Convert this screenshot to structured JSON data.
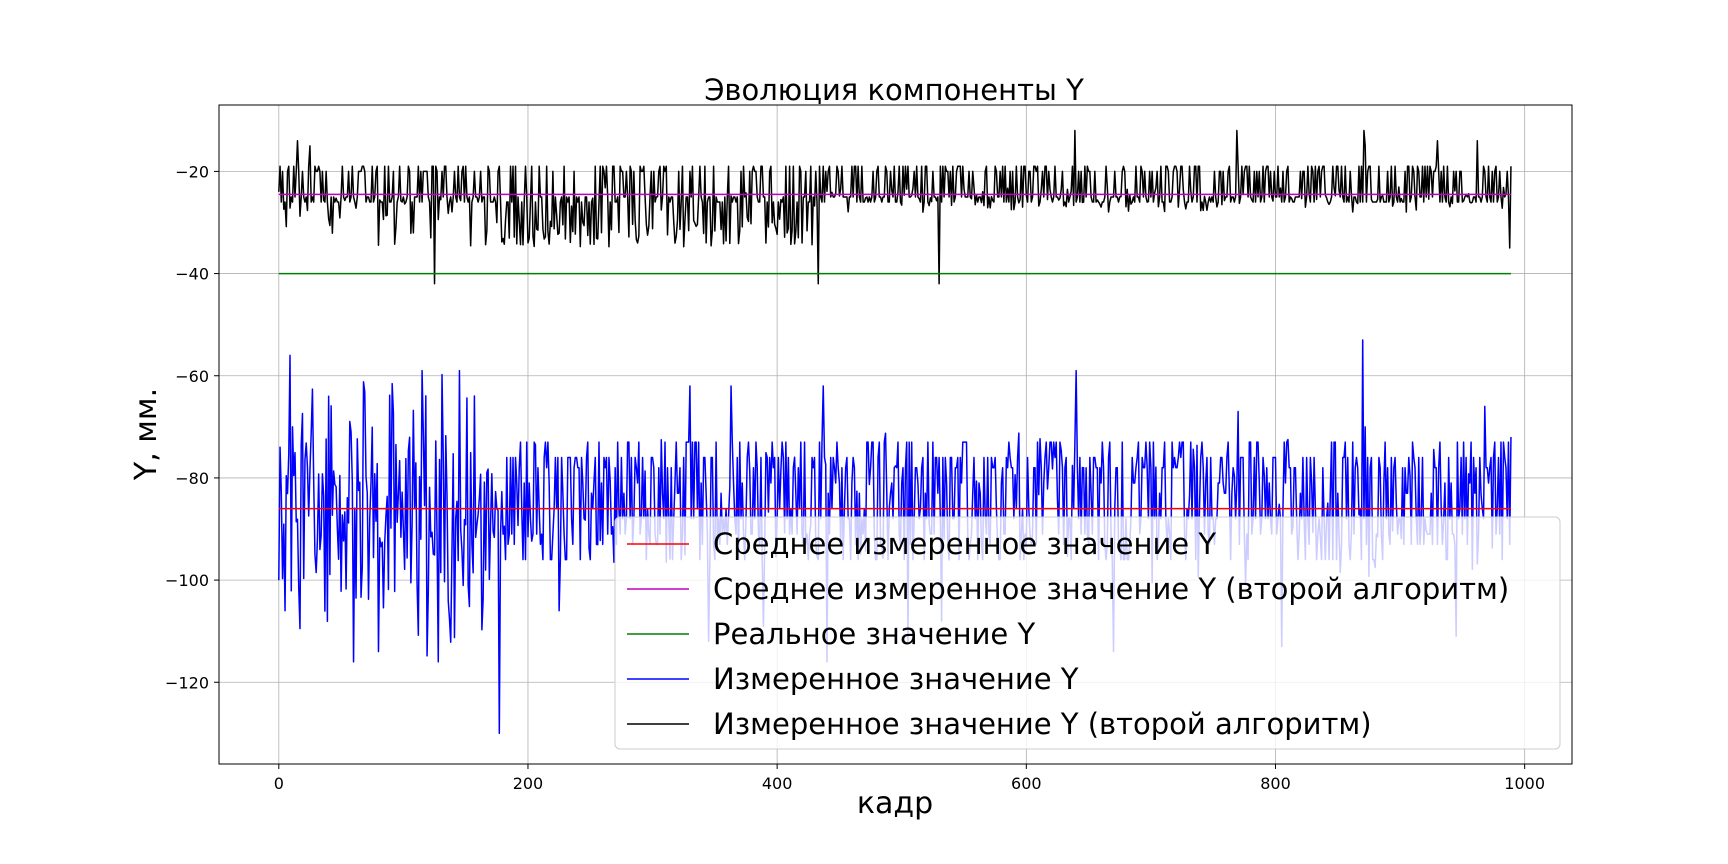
{
  "chart_data": {
    "type": "line",
    "title": "Эволюция компоненты Y",
    "xlabel": "кадр",
    "ylabel": "Y, мм.",
    "xlim": [
      -48,
      1038
    ],
    "ylim": [
      -136,
      -7
    ],
    "xticks": [
      0,
      200,
      400,
      600,
      800,
      1000
    ],
    "yticks": [
      -20,
      -40,
      -60,
      -80,
      -100,
      -120
    ],
    "xtick_labels": [
      "0",
      "200",
      "400",
      "600",
      "800",
      "1000"
    ],
    "ytick_labels": [
      "−20",
      "−40",
      "−60",
      "−80",
      "−100",
      "−120"
    ],
    "grid": true,
    "legend_position": "lower-right",
    "n_frames": 990,
    "series": [
      {
        "name": "Среднее измеренное значение Y",
        "kind": "constant",
        "value": -86,
        "color": "#ff0000"
      },
      {
        "name": "Среднее измеренное значение Y (второй алгоритм)",
        "kind": "constant",
        "value": -24.5,
        "color": "#bf00bf"
      },
      {
        "name": "Реальное значение Y",
        "kind": "constant",
        "value": -40,
        "color": "#008000"
      },
      {
        "name": "Измеренное значение Y",
        "kind": "noisy",
        "mean": -86,
        "levels": [
          -73,
          -76,
          -78,
          -81,
          -83,
          -86,
          -88,
          -91,
          -93,
          -96
        ],
        "early_range": [
          -118,
          -56
        ],
        "spikes": [
          [
            0,
            -100
          ],
          [
            1,
            -74
          ],
          [
            5,
            -106
          ],
          [
            9,
            -56
          ],
          [
            11,
            -70
          ],
          [
            40,
            -64
          ],
          [
            60,
            -116
          ],
          [
            80,
            -114
          ],
          [
            115,
            -59
          ],
          [
            128,
            -116
          ],
          [
            145,
            -59
          ],
          [
            155,
            -93
          ],
          [
            177,
            -130
          ],
          [
            205,
            -73
          ],
          [
            225,
            -106
          ],
          [
            330,
            -62
          ],
          [
            345,
            -112
          ],
          [
            363,
            -62
          ],
          [
            389,
            -109
          ],
          [
            437,
            -62
          ],
          [
            440,
            -116
          ],
          [
            505,
            -112
          ],
          [
            532,
            -108
          ],
          [
            640,
            -59
          ],
          [
            670,
            -114
          ],
          [
            770,
            -67
          ],
          [
            805,
            -113
          ],
          [
            870,
            -53
          ],
          [
            872,
            -70
          ],
          [
            945,
            -111
          ],
          [
            968,
            -66
          ],
          [
            989,
            -72
          ]
        ],
        "color": "#0000ff"
      },
      {
        "name": "Измеренное значение Y (второй алгоритм)",
        "kind": "noisy",
        "mean": -24.5,
        "levels": [
          -19,
          -20,
          -25,
          -26,
          -29,
          -30,
          -33
        ],
        "segments": [
          [
            0,
            170,
            -25,
            -14,
            -35
          ],
          [
            170,
            430,
            -23,
            -19,
            -35
          ],
          [
            430,
            990,
            -23,
            -19,
            -28
          ]
        ],
        "spikes": [
          [
            0,
            -24
          ],
          [
            15,
            -14
          ],
          [
            25,
            -15
          ],
          [
            125,
            -42
          ],
          [
            433,
            -42
          ],
          [
            530,
            -42
          ],
          [
            639,
            -12
          ],
          [
            769,
            -12
          ],
          [
            871,
            -12
          ],
          [
            872,
            -15
          ],
          [
            930,
            -14
          ],
          [
            962,
            -14
          ],
          [
            988,
            -35
          ],
          [
            989,
            -19
          ]
        ],
        "color": "#000000"
      }
    ]
  }
}
